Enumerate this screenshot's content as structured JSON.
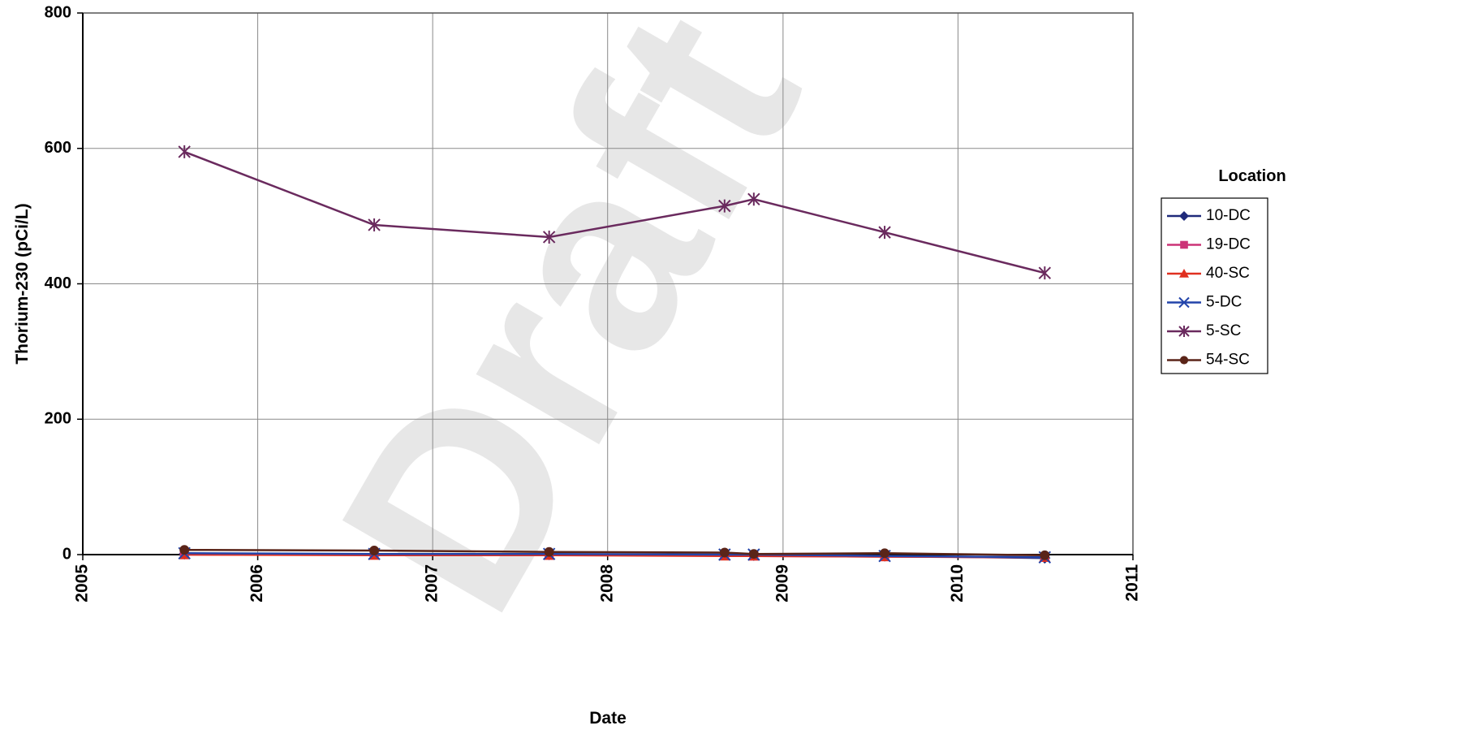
{
  "chart_data": {
    "type": "line",
    "xlabel": "Date",
    "ylabel": "Thorium-230 (pCi/L)",
    "x_ticks": [
      "2005",
      "2006",
      "2007",
      "2008",
      "2009",
      "2010",
      "2011"
    ],
    "y_ticks": [
      "0",
      "200",
      "400",
      "600",
      "800"
    ],
    "xlim": [
      "2005-01-01",
      "2011-01-01"
    ],
    "ylim": [
      0,
      800
    ],
    "grid": true,
    "legend_title": "Location",
    "legend_position": "right",
    "watermark": "Draft",
    "series": [
      {
        "name": "10-DC",
        "color": "#1f2a7a",
        "marker": "diamond",
        "points": [
          [
            "2005-08-01",
            1
          ],
          [
            "2006-09-01",
            1
          ],
          [
            "2007-09-01",
            0
          ],
          [
            "2008-09-01",
            0
          ],
          [
            "2008-11-01",
            -1
          ],
          [
            "2009-08-01",
            -2
          ],
          [
            "2010-07-01",
            -5
          ]
        ]
      },
      {
        "name": "19-DC",
        "color": "#cc3377",
        "marker": "square",
        "points": [
          [
            "2005-08-01",
            0
          ],
          [
            "2006-09-01",
            0
          ],
          [
            "2007-09-01",
            -1
          ],
          [
            "2008-09-01",
            -1
          ],
          [
            "2008-11-01",
            -2
          ],
          [
            "2009-08-01",
            -3
          ],
          [
            "2010-07-01",
            -4
          ]
        ]
      },
      {
        "name": "40-SC",
        "color": "#e03020",
        "marker": "triangle",
        "points": [
          [
            "2005-08-01",
            0
          ],
          [
            "2006-09-01",
            -1
          ],
          [
            "2007-09-01",
            -1
          ],
          [
            "2008-09-01",
            -2
          ],
          [
            "2008-11-01",
            -2
          ],
          [
            "2009-08-01",
            -3
          ],
          [
            "2010-07-01",
            -4
          ]
        ]
      },
      {
        "name": "5-DC",
        "color": "#2244aa",
        "marker": "x",
        "points": [
          [
            "2005-08-01",
            2
          ],
          [
            "2006-09-01",
            1
          ],
          [
            "2007-09-01",
            1
          ],
          [
            "2008-09-01",
            0
          ],
          [
            "2008-11-01",
            0
          ],
          [
            "2009-08-01",
            -2
          ],
          [
            "2010-07-01",
            -4
          ]
        ]
      },
      {
        "name": "5-SC",
        "color": "#6a2a5e",
        "marker": "asterisk",
        "points": [
          [
            "2005-08-01",
            595
          ],
          [
            "2006-09-01",
            487
          ],
          [
            "2007-09-01",
            469
          ],
          [
            "2008-09-01",
            515
          ],
          [
            "2008-11-01",
            525
          ],
          [
            "2009-08-01",
            476
          ],
          [
            "2010-07-01",
            416
          ]
        ]
      },
      {
        "name": "54-SC",
        "color": "#5a2418",
        "marker": "circle",
        "points": [
          [
            "2005-08-01",
            7
          ],
          [
            "2006-09-01",
            6
          ],
          [
            "2007-09-01",
            4
          ],
          [
            "2008-09-01",
            3
          ],
          [
            "2008-11-01",
            1
          ],
          [
            "2009-08-01",
            2
          ],
          [
            "2010-07-01",
            -1
          ]
        ]
      }
    ]
  }
}
